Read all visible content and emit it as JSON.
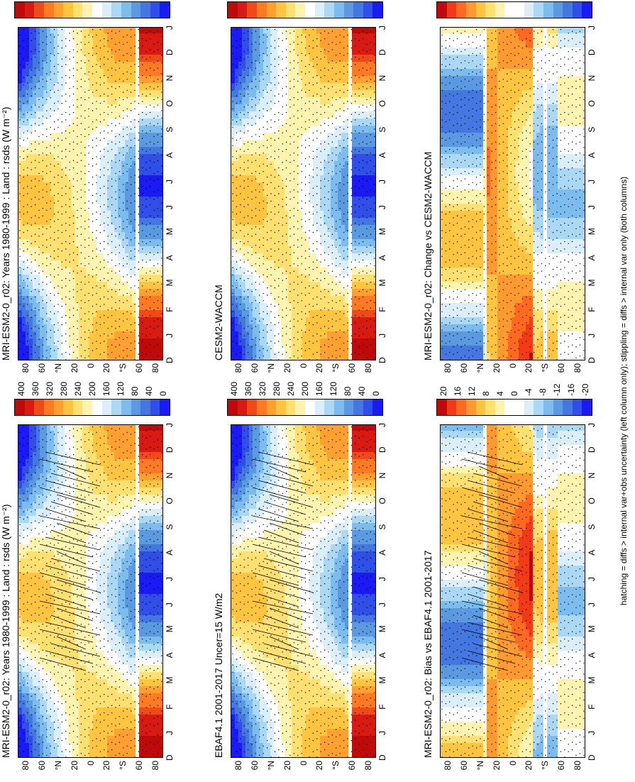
{
  "footnote": "hatching = diffs > internal var+obs uncertainty (left column only); stippling = diffs > internal var only (both columns)",
  "months": [
    "D",
    "J",
    "F",
    "M",
    "A",
    "M",
    "J",
    "J",
    "A",
    "S",
    "O",
    "N",
    "D",
    "J"
  ],
  "lat_ticks": [
    "80",
    "60",
    "°N",
    "20",
    "0",
    "20",
    "°S",
    "60",
    "80"
  ],
  "abs_scale": {
    "labels": [
      "0",
      "40",
      "80",
      "120",
      "160",
      "200",
      "240",
      "280",
      "320",
      "360",
      "400"
    ],
    "colors": [
      "#1a1af5",
      "#2f4fe8",
      "#4577e0",
      "#5b9ae0",
      "#7dbcee",
      "#aad8f5",
      "#dbeffa",
      "#ffffff",
      "#fff3b0",
      "#ffe070",
      "#ffc540",
      "#ffa030",
      "#ff7a20",
      "#f04a18",
      "#d81a12",
      "#c00a0a"
    ]
  },
  "diff_scale": {
    "labels": [
      "-20",
      "-16",
      "-12",
      "-8",
      "-4",
      "0",
      "4",
      "8",
      "12",
      "16",
      "20"
    ],
    "colors": [
      "#1a1af5",
      "#2f4fe8",
      "#4577e0",
      "#5b9ae0",
      "#7dbcee",
      "#aad8f5",
      "#dbeffa",
      "#ffffff",
      "#ffffff",
      "#fff3b0",
      "#ffe070",
      "#ffc540",
      "#ff9a30",
      "#ff6a20",
      "#f03a18",
      "#c00a0a"
    ]
  },
  "panels": [
    {
      "title": "MRI-ESM2-0_r02: Years 1980-1999 : Land : rsds (W m⁻²)",
      "type": "abs",
      "hatch": true
    },
    {
      "title": "EBAF4.1 2001-2017 Uncer=15 W/m2",
      "type": "abs",
      "hatch": true
    },
    {
      "title": "MRI-ESM2-0_r02: Bias vs EBAF4.1 2001-2017",
      "type": "diff",
      "hatch": true
    },
    {
      "title": "MRI-ESM2-0_r02: Years 1980-1999 : Land : rsds (W m⁻²)",
      "type": "abs",
      "hatch": false
    },
    {
      "title": "CESM2-WACCM",
      "type": "abs",
      "hatch": false
    },
    {
      "title": "MRI-ESM2-0_r02: Change vs CESM2-WACCM",
      "type": "diff",
      "hatch": false
    }
  ],
  "chart_data": {
    "type": "heatmap",
    "x": [
      "D",
      "J",
      "F",
      "M",
      "A",
      "M",
      "J",
      "J",
      "A",
      "S",
      "O",
      "N",
      "D",
      "J"
    ],
    "y": [
      "80",
      "60",
      "°N",
      "20",
      "0",
      "20",
      "°S",
      "60",
      "80"
    ],
    "abs_colorbar_ticks": [
      0,
      40,
      80,
      120,
      160,
      200,
      240,
      280,
      320,
      360,
      400
    ],
    "diff_colorbar_ticks": [
      -20,
      -16,
      -12,
      -8,
      -4,
      0,
      4,
      8,
      12,
      16,
      20
    ]
  }
}
